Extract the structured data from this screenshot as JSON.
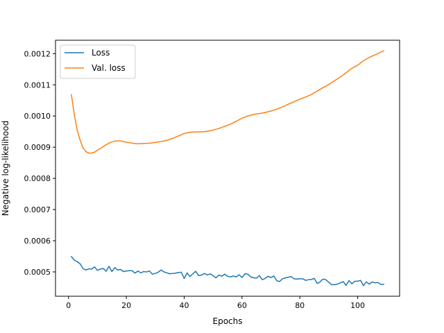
{
  "chart_data": {
    "type": "line",
    "title": "",
    "xlabel": "Epochs",
    "ylabel": "Negative log-likelihood",
    "xlim": [
      -4.5,
      114.5
    ],
    "ylim": [
      0.000422,
      0.001243
    ],
    "xticks": [
      0,
      20,
      40,
      60,
      80,
      100
    ],
    "xtick_labels": [
      "0",
      "20",
      "40",
      "60",
      "80",
      "100"
    ],
    "yticks": [
      0.0005,
      0.0006,
      0.0007,
      0.0008,
      0.0009,
      0.001,
      0.0011,
      0.0012
    ],
    "ytick_labels": [
      "0.0005",
      "0.0006",
      "0.0007",
      "0.0008",
      "0.0009",
      "0.0010",
      "0.0011",
      "0.0012"
    ],
    "grid": false,
    "legend_position": "upper-left",
    "series": [
      {
        "name": "Loss",
        "color": "#1f77b4",
        "x": [
          1,
          2,
          3,
          4,
          5,
          6,
          7,
          8,
          9,
          10,
          11,
          12,
          13,
          14,
          15,
          16,
          17,
          18,
          19,
          20,
          21,
          22,
          23,
          24,
          25,
          26,
          27,
          28,
          29,
          30,
          31,
          32,
          33,
          34,
          35,
          36,
          37,
          38,
          39,
          40,
          41,
          42,
          43,
          44,
          45,
          46,
          47,
          48,
          49,
          50,
          51,
          52,
          53,
          54,
          55,
          56,
          57,
          58,
          59,
          60,
          61,
          62,
          63,
          64,
          65,
          66,
          67,
          68,
          69,
          70,
          71,
          72,
          73,
          74,
          75,
          76,
          77,
          78,
          79,
          80,
          81,
          82,
          83,
          84,
          85,
          86,
          87,
          88,
          89,
          90,
          91,
          92,
          93,
          94,
          95,
          96,
          97,
          98,
          99,
          100,
          101,
          102,
          103,
          104,
          105,
          106,
          107,
          108,
          109
        ],
        "values": [
          0.000549,
          0.000538,
          0.000533,
          0.000526,
          0.000511,
          0.000506,
          0.00051,
          0.000509,
          0.000516,
          0.000505,
          0.000509,
          0.000511,
          0.000502,
          0.000518,
          0.000501,
          0.000514,
          0.000506,
          0.000508,
          0.000501,
          0.000503,
          0.000504,
          0.000504,
          0.000496,
          0.000503,
          0.000497,
          0.000501,
          0.0005,
          0.000503,
          0.000493,
          0.000495,
          0.000499,
          0.000506,
          0.0005,
          0.000497,
          0.000494,
          0.000495,
          0.000496,
          0.000498,
          0.000499,
          0.000479,
          0.000497,
          0.000485,
          0.000494,
          0.000502,
          0.000488,
          0.00049,
          0.000495,
          0.00049,
          0.000494,
          0.000488,
          0.000481,
          0.00049,
          0.000486,
          0.000493,
          0.000486,
          0.000484,
          0.000487,
          0.000484,
          0.000491,
          0.000482,
          0.000494,
          0.000493,
          0.000484,
          0.000481,
          0.00048,
          0.000488,
          0.000475,
          0.000479,
          0.000486,
          0.000482,
          0.000487,
          0.000472,
          0.000469,
          0.000478,
          0.000481,
          0.000483,
          0.000485,
          0.000478,
          0.000477,
          0.000478,
          0.000478,
          0.000473,
          0.000475,
          0.000476,
          0.000479,
          0.000463,
          0.000468,
          0.000477,
          0.000475,
          0.000467,
          0.000459,
          0.000459,
          0.000461,
          0.000465,
          0.000469,
          0.000457,
          0.000472,
          0.000462,
          0.00047,
          0.00047,
          0.000473,
          0.000456,
          0.000468,
          0.000461,
          0.000468,
          0.000465,
          0.000466,
          0.00046,
          0.00046
        ]
      },
      {
        "name": "Val. loss",
        "color": "#ff7f0e",
        "x": [
          1,
          2,
          3,
          4,
          5,
          6,
          7,
          8,
          9,
          10,
          11,
          12,
          14,
          16,
          18,
          20,
          22,
          24,
          26,
          28,
          30,
          32,
          34,
          36,
          38,
          40,
          42,
          44,
          46,
          48,
          50,
          52,
          54,
          56,
          58,
          60,
          62,
          64,
          66,
          68,
          70,
          72,
          74,
          76,
          78,
          80,
          82,
          84,
          86,
          88,
          90,
          92,
          94,
          96,
          98,
          100,
          102,
          104,
          106,
          108,
          109
        ],
        "values": [
          0.001068,
          0.001005,
          0.000955,
          0.000923,
          0.000898,
          0.000886,
          0.000881,
          0.000881,
          0.000884,
          0.00089,
          0.000896,
          0.000902,
          0.000913,
          0.00092,
          0.00092,
          0.000916,
          0.000913,
          0.000911,
          0.000912,
          0.000913,
          0.000915,
          0.000918,
          0.000922,
          0.000928,
          0.000936,
          0.000944,
          0.000948,
          0.000949,
          0.000949,
          0.000951,
          0.000955,
          0.00096,
          0.000967,
          0.000974,
          0.000983,
          0.000993,
          0.001,
          0.001005,
          0.001008,
          0.001011,
          0.001016,
          0.001022,
          0.001029,
          0.001038,
          0.001046,
          0.001054,
          0.001061,
          0.001069,
          0.00108,
          0.001091,
          0.001101,
          0.001113,
          0.001125,
          0.001139,
          0.001153,
          0.001163,
          0.001177,
          0.001188,
          0.001196,
          0.001205,
          0.001209
        ]
      }
    ]
  }
}
